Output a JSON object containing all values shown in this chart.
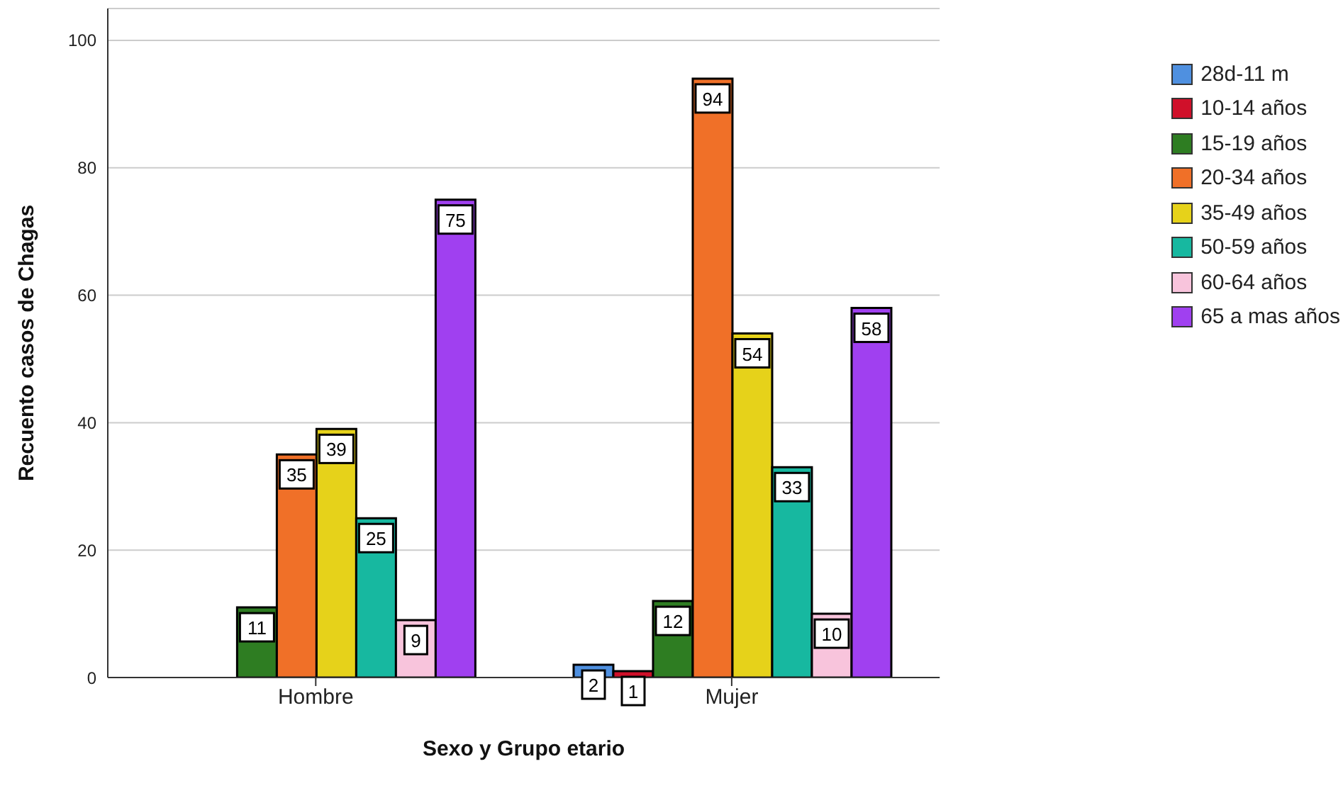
{
  "chart_data": {
    "type": "bar",
    "xlabel": "Sexo y Grupo etario",
    "ylabel": "Recuento casos de Chagas",
    "categories": [
      "Hombre",
      "Mujer"
    ],
    "series": [
      {
        "name": "28d-11 m",
        "color": "#4f90e0",
        "values": [
          null,
          2
        ]
      },
      {
        "name": "10-14 años",
        "color": "#d0102a",
        "values": [
          null,
          1
        ]
      },
      {
        "name": "15-19 años",
        "color": "#2e7d22",
        "values": [
          11,
          12
        ]
      },
      {
        "name": "20-34 años",
        "color": "#f07028",
        "values": [
          35,
          94
        ]
      },
      {
        "name": "35-49 años",
        "color": "#e6d21a",
        "values": [
          39,
          54
        ]
      },
      {
        "name": "50-59 años",
        "color": "#17b8a0",
        "values": [
          25,
          33
        ]
      },
      {
        "name": "60-64 años",
        "color": "#f8c4dc",
        "values": [
          9,
          10
        ]
      },
      {
        "name": "65 a mas años",
        "color": "#a040f0",
        "values": [
          75,
          58
        ]
      }
    ],
    "ylim": [
      0,
      105
    ],
    "yticks": [
      0,
      20,
      40,
      60,
      80,
      100
    ],
    "grid": "y",
    "legend": "right",
    "data_labels": true
  }
}
